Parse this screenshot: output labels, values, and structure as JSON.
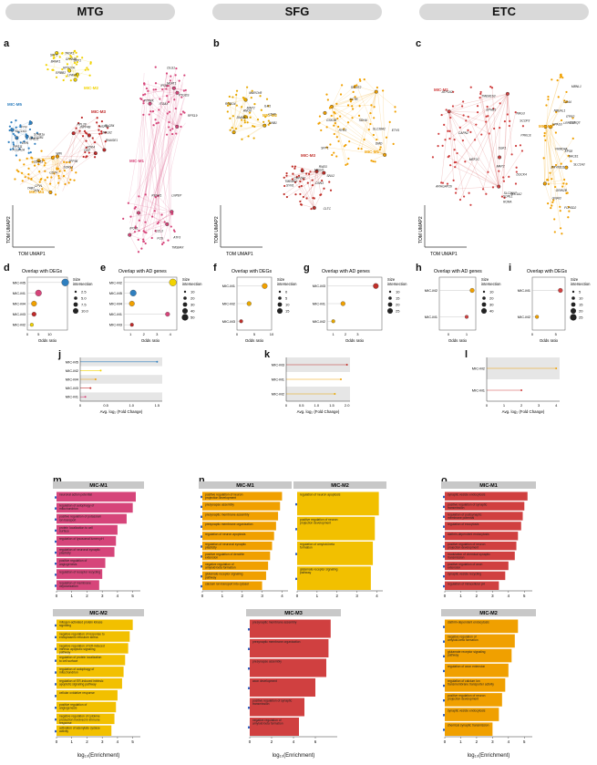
{
  "headers": [
    "MTG",
    "SFG",
    "ETC"
  ],
  "panel_letters": [
    "a",
    "b",
    "c",
    "d",
    "e",
    "f",
    "g",
    "h",
    "i",
    "j",
    "k",
    "l",
    "m",
    "n",
    "o"
  ],
  "umap": {
    "x_label": "TOM UMAP1",
    "y_label": "TOM UMAP2",
    "a": {
      "modules": [
        {
          "name": "MIC-M1",
          "color": "#d6457a"
        },
        {
          "name": "MIC-M2",
          "color": "#f2d300"
        },
        {
          "name": "MIC-M3",
          "color": "#c02a2a"
        },
        {
          "name": "MIC-M4",
          "color": "#f0a000"
        },
        {
          "name": "MIC-M5",
          "color": "#2f7fbf"
        }
      ],
      "genes": [
        "RPS27A",
        "RPS11",
        "CD74",
        "RPL28",
        "RPS19",
        "TMSB4X",
        "SPP1",
        "STAB1a",
        "CD163",
        "PDK4",
        "IFI30",
        "ATF3",
        "SPP1",
        "SLCO2B1",
        "CPVL",
        "HSPB1",
        "ITGAX",
        "FOS",
        "LPAR6",
        "ERN",
        "JUN",
        "MAGI2",
        "NEAT1",
        "CCL3",
        "GPNMB",
        "NHEJ1",
        "ZFP36",
        "DSP",
        "DLG1",
        "RUNX1",
        "BANK1",
        "FCGR1A",
        "SORL1",
        "PLCB4",
        "PTPRK",
        "IPO11",
        "ERBB2",
        "FYN",
        "WIN",
        "INPP4B",
        "PTGDS",
        "LNPEP",
        "TAOK1",
        "SLC1A3",
        "TAB2",
        "RNASE1"
      ]
    },
    "b": {
      "modules": [
        {
          "name": "MIC-M1",
          "color": "#f0a000"
        },
        {
          "name": "MIC-M2",
          "color": "#e8a800"
        },
        {
          "name": "MIC-M3",
          "color": "#c0302a"
        }
      ],
      "genes": [
        "SDHA",
        "MARCH8",
        "TMEM54",
        "RYR3",
        "MAP2",
        "MAGI2",
        "ETV5",
        "IL4I1",
        "CLTC",
        "SPP1",
        "ROBO4",
        "SNX2",
        "SLC38A2",
        "DNAJC1",
        "CAPZA1",
        "ACTB",
        "CD40",
        "SYN1",
        "SPINT2",
        "ANO6",
        "RND3",
        "GSK3B",
        "GNB1",
        "CNN3",
        "DMD"
      ]
    },
    "c": {
      "modules": [
        {
          "name": "MIC-M1",
          "color": "#d04040"
        },
        {
          "name": "MIC-M2",
          "color": "#f0a000"
        }
      ],
      "genes": [
        "SLC26A7",
        "LRRC40",
        "CAPN2",
        "NBEAL1",
        "EPHB1",
        "ZMYND11",
        "MEF2C",
        "KCNQ3",
        "DOCK4",
        "FRMD4A",
        "SORL1",
        "ITPR2",
        "TMEM163",
        "EPS8",
        "PRKCE",
        "GNAI3",
        "NRG3",
        "SLC1A3",
        "SLC1A2",
        "BACE1",
        "ATP1A2",
        "FCHSD2",
        "MAP2",
        "CD44",
        "ARHGAP26",
        "MBNL1",
        "SCOF3",
        "NPAS3",
        "RORA",
        "GRIN2B",
        "SGK1"
      ]
    }
  },
  "panel_titles": {
    "d": "Overlap with DEGs",
    "e": "Overlap with AD genes",
    "f": "Overlap with DEGs",
    "g": "Overlap with AD genes",
    "h": "Overlap with AD genes",
    "i": "Overlap with DEGs"
  },
  "dot_common": {
    "x_label": "Odds ratio",
    "legend_title": "Size\nintersection"
  },
  "chart_data": [
    {
      "type": "scatter",
      "panel": "d",
      "title": "Overlap with DEGs",
      "xlabel": "Odds ratio",
      "categories": [
        "MIC-M5",
        "MIC-M1",
        "MIC-M4",
        "MIC-M3",
        "MIC-M2"
      ],
      "x": [
        17,
        5,
        3,
        3,
        2
      ],
      "ticks": [
        "0",
        "5",
        "10"
      ],
      "xlim": [
        0,
        18
      ],
      "legend": [
        "2.5",
        "5.0",
        "7.5",
        "10.0"
      ],
      "colors": [
        "#2f7fbf",
        "#d6457a",
        "#f0a000",
        "#c02a2a",
        "#f2d300"
      ]
    },
    {
      "type": "scatter",
      "panel": "e",
      "title": "Overlap with AD genes",
      "xlabel": "Odds ratio",
      "categories": [
        "MIC-M2",
        "MIC-M5",
        "MIC-M4",
        "MIC-M1",
        "MIC-M3"
      ],
      "x": [
        4.2,
        1.2,
        1.1,
        3.8,
        1.1
      ],
      "ticks": [
        "1",
        "2",
        "3",
        "4"
      ],
      "xlim": [
        0.5,
        4.5
      ],
      "legend": [
        "10",
        "20",
        "30",
        "40",
        "50"
      ],
      "colors": [
        "#f2d300",
        "#2f7fbf",
        "#f0a000",
        "#d6457a",
        "#c02a2a"
      ]
    },
    {
      "type": "scatter",
      "panel": "f",
      "title": "Overlap with DEGs",
      "xlabel": "Odds ratio",
      "categories": [
        "MIC-M1",
        "MIC-M2",
        "MIC-M3"
      ],
      "x": [
        8.0,
        3.5,
        1.2
      ],
      "ticks": [
        "0",
        "5",
        "10"
      ],
      "xlim": [
        0,
        10
      ],
      "legend": [
        "0",
        "5",
        "10",
        "15"
      ],
      "colors": [
        "#f0a000",
        "#e8a800",
        "#c0302a"
      ]
    },
    {
      "type": "scatter",
      "panel": "g",
      "title": "Overlap with AD genes",
      "xlabel": "Odds ratio",
      "categories": [
        "MIC-M3",
        "MIC-M1",
        "MIC-M2"
      ],
      "x": [
        4.5,
        1.8,
        1.0
      ],
      "ticks": [
        "1",
        "2",
        "3"
      ],
      "xlim": [
        0.5,
        5
      ],
      "legend": [
        "10",
        "15",
        "20",
        "25"
      ],
      "colors": [
        "#c0302a",
        "#f0a000",
        "#e8a800"
      ]
    },
    {
      "type": "scatter",
      "panel": "h",
      "title": "Overlap with AD genes",
      "xlabel": "Odds ratio",
      "categories": [
        "MIC-M2",
        "MIC-M1"
      ],
      "x": [
        1.3,
        1.0
      ],
      "ticks": [
        "0",
        "1"
      ],
      "xlim": [
        -0.5,
        1.5
      ],
      "legend": [
        "10",
        "20",
        "30",
        "40"
      ],
      "colors": [
        "#f0a000",
        "#d04040"
      ]
    },
    {
      "type": "scatter",
      "panel": "i",
      "title": "Overlap with DEGs",
      "xlabel": "Odds ratio",
      "categories": [
        "MIC-M1",
        "MIC-M2"
      ],
      "x": [
        6.0,
        1.0
      ],
      "ticks": [
        "0",
        "5"
      ],
      "xlim": [
        0,
        7
      ],
      "legend": [
        "5",
        "10",
        "15",
        "20",
        "25"
      ],
      "colors": [
        "#d04040",
        "#f0a000"
      ]
    },
    {
      "type": "bar",
      "panel": "j",
      "xlabel": "Avg. log₂ (Fold Change)",
      "categories": [
        "MIC-M5",
        "MIC-M2",
        "MIC-M4",
        "MIC-M3",
        "MIC-M1"
      ],
      "values": [
        1.5,
        0.4,
        0.3,
        0.2,
        0.1
      ],
      "ticks": [
        "0",
        "0.5",
        "1.0",
        "1.5"
      ],
      "xlim": [
        0,
        1.6
      ],
      "colors": [
        "#2f7fbf",
        "#f2d300",
        "#f0a000",
        "#c02a2a",
        "#d6457a"
      ]
    },
    {
      "type": "bar",
      "panel": "k",
      "xlabel": "Avg. log₂ (Fold Change)",
      "categories": [
        "MIC-M3",
        "MIC-M1",
        "MIC-M2"
      ],
      "values": [
        2.0,
        1.8,
        1.6
      ],
      "ticks": [
        "0",
        "0.5",
        "1.0",
        "1.5",
        "2.0"
      ],
      "xlim": [
        0,
        2.1
      ],
      "colors": [
        "#c0302a",
        "#f0a000",
        "#e8a800"
      ]
    },
    {
      "type": "bar",
      "panel": "l",
      "xlabel": "Avg. log₂ (Fold Change)",
      "categories": [
        "MIC-M2",
        "MIC-M1"
      ],
      "values": [
        4.0,
        2.0
      ],
      "ticks": [
        "0",
        "1",
        "2",
        "3",
        "4"
      ],
      "xlim": [
        0,
        4.2
      ],
      "colors": [
        "#f0a000",
        "#d04040"
      ]
    }
  ],
  "enrichment": {
    "x_label": "log₁₀(Enrichment)",
    "m": [
      {
        "title": "MIC-M1",
        "color": "#d6457a",
        "ticks": [
          "0",
          "1",
          "2",
          "3",
          "4",
          "5"
        ],
        "xmax": 5.5,
        "terms": [
          "neuronal action potential",
          "regulation of autophagy of mitochondrion",
          "positive regulation of potassium ion transport",
          "protein localization to cell surface",
          "regulation of lysosomal lumen pH",
          "regulation of neuronal synaptic plasticity",
          "positive regulation of angiogenesis",
          "regulation of receptor recycling",
          "regulation of membrane depolarization"
        ],
        "values": [
          5.2,
          5.0,
          4.6,
          4.0,
          3.9,
          3.8,
          3.2,
          3.0,
          2.8
        ]
      },
      {
        "title": "MIC-M2",
        "color": "#f2c000",
        "ticks": [
          "0",
          "1",
          "2",
          "3",
          "4",
          "5"
        ],
        "xmax": 5.5,
        "terms": [
          "mitogen-activated protein kinase signaling",
          "negative regulation of response to endoplasmic reticulum stress",
          "negative regulation of ER-induced intrinsic apoptotic signaling pathway",
          "regulation of protein localization to cell surface",
          "regulation of autophagy of mitochondrion",
          "regulation of ER-induced intrinsic apoptotic signaling pathway",
          "cellular oxidative response",
          "positive regulation of angiogenesis",
          "negative regulation of cytokine production involved in immune response",
          "activation of adenylate cyclase activity"
        ],
        "values": [
          5.0,
          4.8,
          4.7,
          4.5,
          4.4,
          4.3,
          4.0,
          3.9,
          3.8,
          3.6
        ]
      }
    ],
    "n": [
      {
        "title": "MIC-M1",
        "color": "#f0a000",
        "ticks": [
          "0",
          "1",
          "2",
          "3",
          "4"
        ],
        "xmax": 4.3,
        "terms": [
          "positive regulation of neuron projection development",
          "presynapse assembly",
          "presynaptic membrane assembly",
          "presynaptic membrane organization",
          "regulation of neuron apoptosis",
          "regulation of neuronal synaptic plasticity",
          "positive regulation of dendrite extension",
          "negative regulation of amyloid-beta formation",
          "glutamate receptor signaling pathway",
          "calcium ion transport into cytosol"
        ],
        "values": [
          4.0,
          3.9,
          3.8,
          3.7,
          3.6,
          3.5,
          3.4,
          3.3,
          3.2,
          3.0
        ]
      },
      {
        "title": "MIC-M2",
        "color": "#f2c000",
        "ticks": [
          "0",
          "1",
          "2",
          "3",
          "4"
        ],
        "xmax": 4.3,
        "terms": [
          "regulation of neuron apoptosis",
          "positive regulation of neuron projection development",
          "regulation of amyloid-beta formation",
          "glutamate receptor signaling pathway"
        ],
        "values": [
          4.1,
          3.9,
          3.8,
          3.7
        ]
      },
      {
        "title": "MIC-M3",
        "color": "#d04040",
        "ticks": [
          "0",
          "2",
          "4",
          "6"
        ],
        "xmax": 8,
        "terms": [
          "presynaptic membrane assembly",
          "presynaptic membrane organization",
          "presynapse assembly",
          "axon development",
          "positive regulation of synaptic transmission",
          "negative regulation of amyloid-beta formation"
        ],
        "values": [
          7.4,
          7.2,
          7.0,
          6.0,
          5.0,
          4.5
        ]
      }
    ],
    "o": [
      {
        "title": "MIC-M1",
        "color": "#d04040",
        "ticks": [
          "0",
          "1",
          "2",
          "3",
          "4",
          "5"
        ],
        "xmax": 5.5,
        "terms": [
          "synaptic vesicle endocytosis",
          "positive regulation of synaptic transmission",
          "regulation of postsynaptic membrane potential",
          "regulation of exocytosis",
          "clathrin-dependent endocytosis",
          "positive regulation of neuron projection development",
          "modulation of chemical synaptic transmission",
          "positive regulation of axon extension",
          "synaptic vesicle recycling",
          "regulation of intracellular pH"
        ],
        "values": [
          5.2,
          5.0,
          4.9,
          4.8,
          4.6,
          4.5,
          4.4,
          4.0,
          3.8,
          3.4
        ]
      },
      {
        "title": "MIC-M2",
        "color": "#f0a000",
        "ticks": [
          "0",
          "1",
          "2",
          "3",
          "4",
          "5"
        ],
        "xmax": 5.5,
        "terms": [
          "clathrin-dependent endocytosis",
          "negative regulation of amyloid-beta formation",
          "glutamate receptor signaling pathway",
          "regulation of axon extension",
          "regulation of calcium ion transmembrane transporter activity",
          "positive regulation of neuron projection development",
          "synaptic vesicle endocytosis",
          "chemical synaptic transmission"
        ],
        "values": [
          4.6,
          4.4,
          4.2,
          4.0,
          3.8,
          3.6,
          3.4,
          3.0
        ]
      }
    ]
  }
}
